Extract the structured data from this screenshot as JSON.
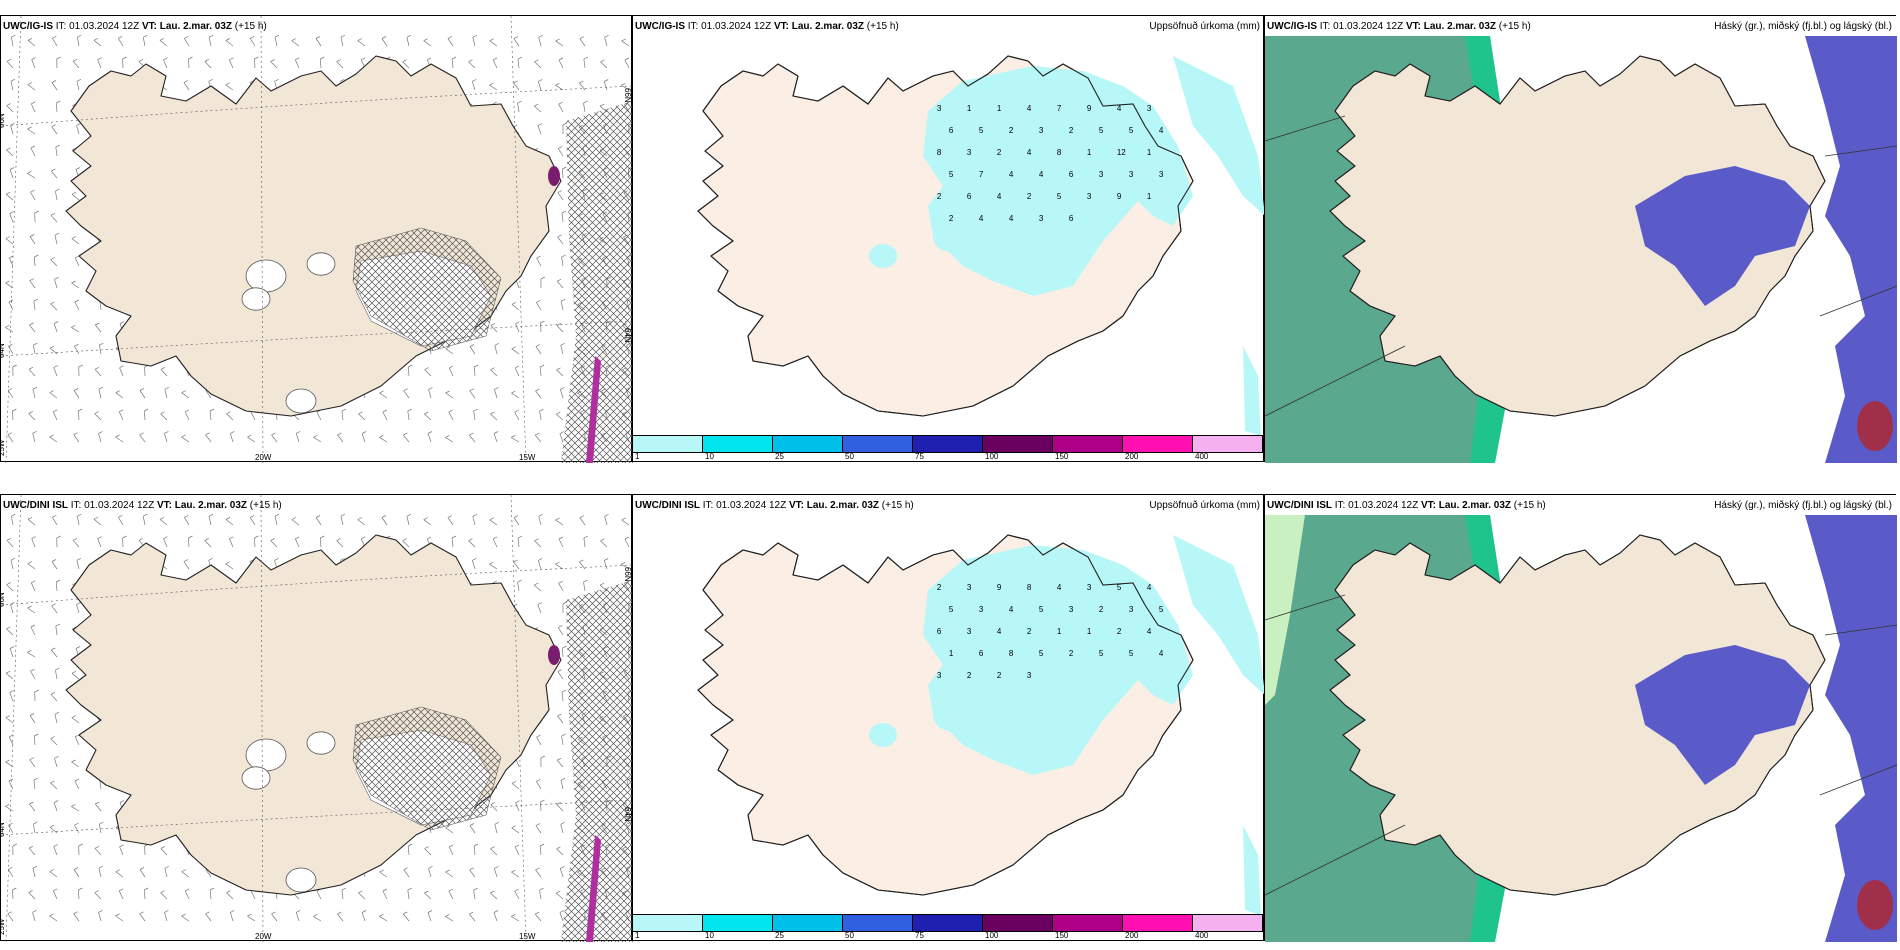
{
  "panels": [
    {
      "model": "UWC/IG-IS",
      "it": "IT: 01.03.2024 12Z",
      "vt_label": "VT:",
      "vt": "Lau. 2.mar. 03Z",
      "lead": "(+15 h)",
      "right": "",
      "type": "wind"
    },
    {
      "model": "UWC/IG-IS",
      "it": "IT: 01.03.2024 12Z",
      "vt_label": "VT:",
      "vt": "Lau. 2.mar. 03Z",
      "lead": "(+15 h)",
      "right": "Uppsöfnuð úrkoma (mm)",
      "type": "precip"
    },
    {
      "model": "UWC/IG-IS",
      "it": "IT: 01.03.2024 12Z",
      "vt_label": "VT:",
      "vt": "Lau. 2.mar. 03Z",
      "lead": "(+15 h)",
      "right": "Háský (gr.), miðský (fj.bl.) og lágský (bl.)",
      "type": "cloud"
    },
    {
      "model": "UWC/DINI ISL",
      "it": "IT: 01.03.2024 12Z",
      "vt_label": "VT:",
      "vt": "Lau. 2.mar. 03Z",
      "lead": "(+15 h)",
      "right": "",
      "type": "wind"
    },
    {
      "model": "UWC/DINI ISL",
      "it": "IT: 01.03.2024 12Z",
      "vt_label": "VT:",
      "vt": "Lau. 2.mar. 03Z",
      "lead": "(+15 h)",
      "right": "Uppsöfnuð úrkoma (mm)",
      "type": "precip"
    },
    {
      "model": "UWC/DINI ISL",
      "it": "IT: 01.03.2024 12Z",
      "vt_label": "VT:",
      "vt": "Lau. 2.mar. 03Z",
      "lead": "(+15 h)",
      "right": "Háský (gr.), miðský (fj.bl.) og lágský (bl.)",
      "type": "cloud"
    }
  ],
  "wind_axis": {
    "lat_labels": [
      "66N",
      "64N"
    ],
    "lat_labels_right": [
      "66N",
      "64N"
    ],
    "lon_labels": [
      "25W",
      "20W",
      "15W"
    ]
  },
  "precip_scale": {
    "labels": [
      "1",
      "10",
      "25",
      "50",
      "75",
      "100",
      "150",
      "200",
      "400"
    ],
    "colors": [
      "#b8f7f7",
      "#00e5ee",
      "#00bfe8",
      "#3060e0",
      "#2020b0",
      "#6a005f",
      "#b0008a",
      "#ff10b0",
      "#f5b0f0"
    ]
  },
  "precip_values_top": [
    "3",
    "1",
    "1",
    "4",
    "7",
    "9",
    "4",
    "3",
    "6",
    "5",
    "2",
    "3",
    "2",
    "5",
    "5",
    "4",
    "8",
    "3",
    "2",
    "4",
    "8",
    "1",
    "12",
    "1",
    "5",
    "7",
    "4",
    "4",
    "6",
    "3",
    "3",
    "3",
    "2",
    "6",
    "4",
    "2",
    "5",
    "3",
    "9",
    "1",
    "2",
    "4",
    "4",
    "3",
    "6"
  ],
  "precip_values_bottom": [
    "2",
    "3",
    "9",
    "8",
    "4",
    "3",
    "5",
    "4",
    "5",
    "3",
    "4",
    "5",
    "3",
    "2",
    "3",
    "5",
    "6",
    "3",
    "4",
    "2",
    "1",
    "1",
    "2",
    "4",
    "1",
    "6",
    "8",
    "5",
    "2",
    "5",
    "5",
    "4",
    "3",
    "2",
    "2",
    "3"
  ],
  "colors": {
    "land": "#f2e6d6",
    "precip_light": "#b8f7f7",
    "cloud_high": "#2db38a",
    "cloud_mid": "#5a5ac8",
    "cloud_low": "#ffffff"
  }
}
